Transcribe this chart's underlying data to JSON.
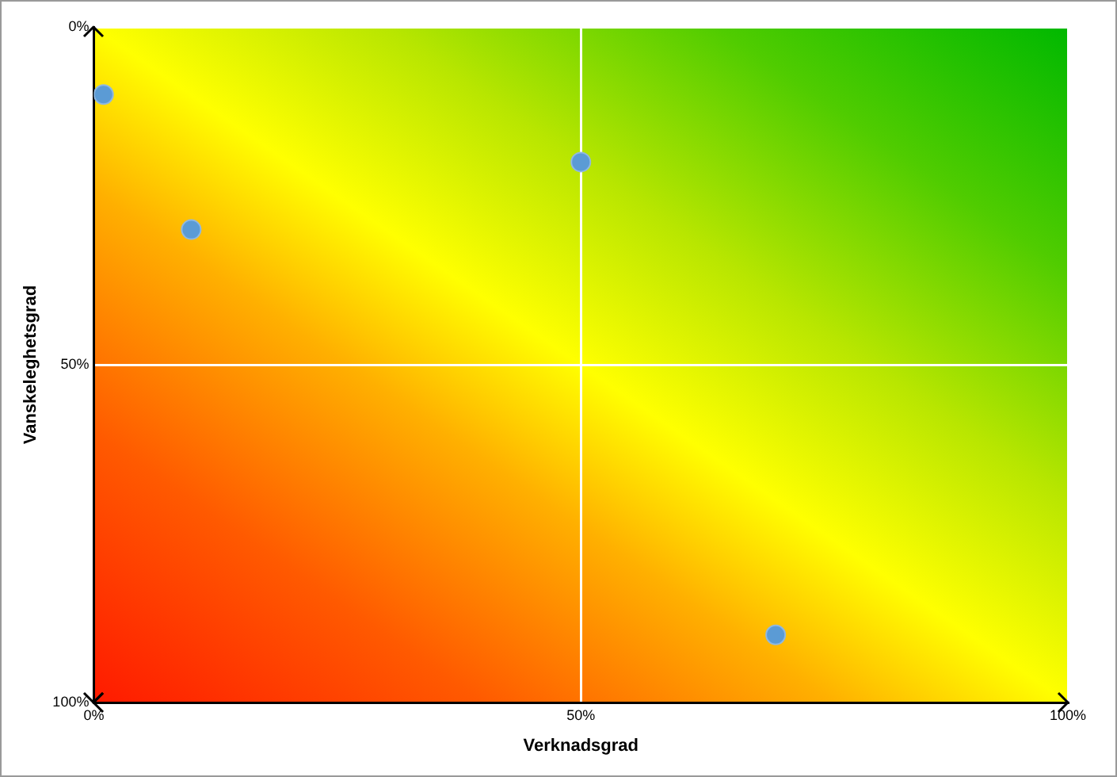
{
  "chart_data": {
    "type": "scatter",
    "xlabel": "Verknadsgrad",
    "ylabel": "Vanskeleghetsgrad",
    "x": [
      1,
      10,
      50,
      70
    ],
    "values": [
      10,
      30,
      20,
      90
    ],
    "color": "#5b9bd5",
    "marker": "circle",
    "xlim": [
      0,
      100
    ],
    "xticks": [
      {
        "value": 0,
        "label": "0%"
      },
      {
        "value": 50,
        "label": "50%"
      },
      {
        "value": 100,
        "label": "100%"
      }
    ],
    "ylim": [
      100,
      0
    ],
    "yticks": [
      {
        "value": 0,
        "label": "0%"
      },
      {
        "value": 50,
        "label": "50%"
      },
      {
        "value": 100,
        "label": "100%"
      }
    ],
    "grid": true,
    "legend": false
  }
}
